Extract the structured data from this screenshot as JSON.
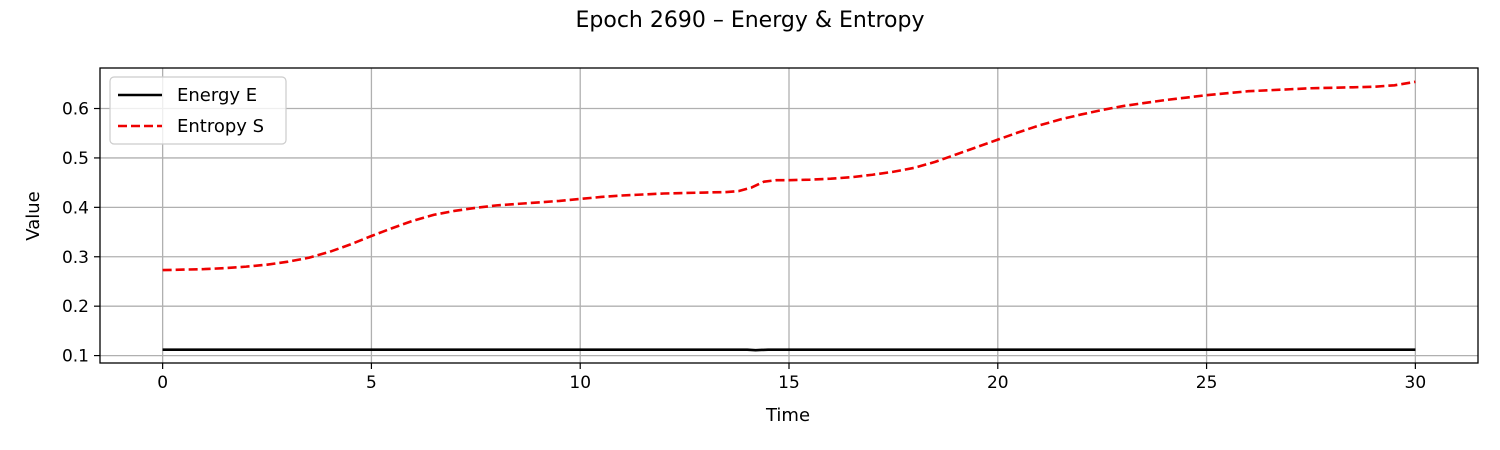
{
  "chart_data": {
    "type": "line",
    "title": "Epoch 2690 – Energy & Entropy",
    "xlabel": "Time",
    "ylabel": "Value",
    "xlim": [
      -1.5,
      31.5
    ],
    "ylim": [
      0.085,
      0.682
    ],
    "xticks": [
      0,
      5,
      10,
      15,
      20,
      25,
      30
    ],
    "yticks": [
      0.1,
      0.2,
      0.3,
      0.4,
      0.5,
      0.6
    ],
    "grid": true,
    "legend_position": "top-left",
    "series": [
      {
        "name": "Energy E",
        "color": "#000000",
        "style": "solid",
        "x": [
          0,
          2,
          4,
          6,
          8,
          10,
          12,
          14,
          14.2,
          14.5,
          16,
          18,
          20,
          22,
          24,
          26,
          28,
          30
        ],
        "y": [
          0.112,
          0.112,
          0.112,
          0.112,
          0.112,
          0.112,
          0.112,
          0.112,
          0.111,
          0.112,
          0.112,
          0.112,
          0.112,
          0.112,
          0.112,
          0.112,
          0.112,
          0.112
        ]
      },
      {
        "name": "Entropy S",
        "color": "#ee0000",
        "style": "dashed",
        "x": [
          0,
          0.5,
          1,
          1.5,
          2,
          2.5,
          3,
          3.5,
          4,
          4.5,
          5,
          5.5,
          6,
          6.5,
          7,
          7.5,
          8,
          8.5,
          9,
          9.5,
          10,
          10.5,
          11,
          11.5,
          12,
          12.5,
          13,
          13.5,
          13.8,
          14.1,
          14.4,
          14.7,
          15,
          15.5,
          16,
          16.5,
          17,
          17.5,
          18,
          18.5,
          19,
          19.5,
          20,
          20.5,
          21,
          21.5,
          22,
          22.5,
          23,
          23.5,
          24,
          24.5,
          25,
          25.5,
          26,
          26.5,
          27,
          27.5,
          28,
          28.5,
          29,
          29.5,
          30
        ],
        "y": [
          0.273,
          0.274,
          0.275,
          0.277,
          0.28,
          0.284,
          0.29,
          0.298,
          0.31,
          0.325,
          0.342,
          0.358,
          0.373,
          0.385,
          0.393,
          0.399,
          0.404,
          0.407,
          0.41,
          0.413,
          0.417,
          0.421,
          0.424,
          0.426,
          0.428,
          0.429,
          0.43,
          0.431,
          0.433,
          0.44,
          0.452,
          0.455,
          0.455,
          0.456,
          0.458,
          0.461,
          0.466,
          0.472,
          0.48,
          0.492,
          0.507,
          0.522,
          0.537,
          0.552,
          0.566,
          0.578,
          0.588,
          0.597,
          0.605,
          0.611,
          0.617,
          0.622,
          0.627,
          0.631,
          0.635,
          0.637,
          0.639,
          0.641,
          0.642,
          0.643,
          0.644,
          0.647,
          0.654
        ]
      }
    ]
  }
}
